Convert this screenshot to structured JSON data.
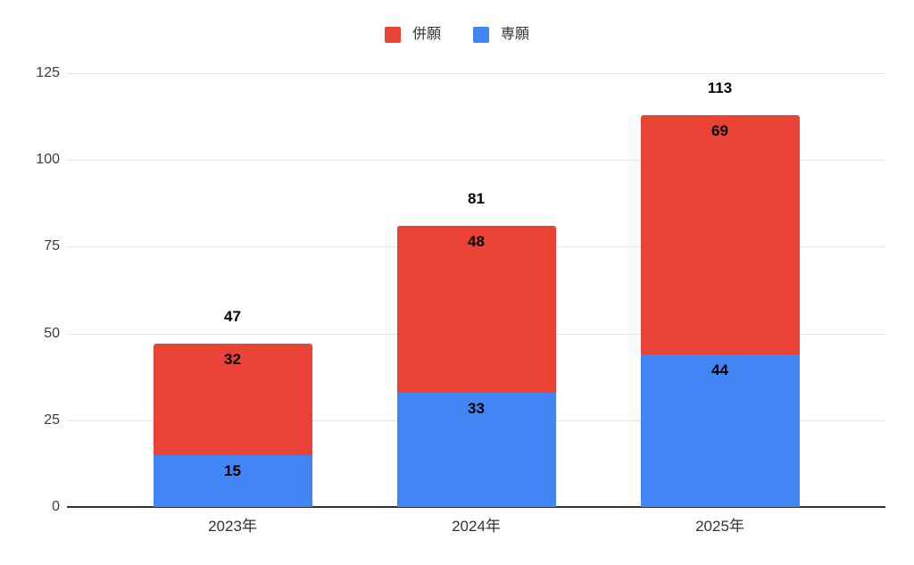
{
  "chart_data": {
    "type": "bar",
    "stacked": true,
    "title": "",
    "xlabel": "",
    "ylabel": "",
    "categories": [
      "2023年",
      "2024年",
      "2025年"
    ],
    "series": [
      {
        "name": "専願",
        "color": "#4285F4",
        "values": [
          15,
          33,
          44
        ]
      },
      {
        "name": "併願",
        "color": "#EA4335",
        "values": [
          32,
          48,
          69
        ]
      }
    ],
    "totals": [
      47,
      81,
      113
    ],
    "legend": [
      {
        "label": "併願",
        "color": "#EA4335"
      },
      {
        "label": "専願",
        "color": "#4285F4"
      }
    ],
    "legend_position": "top",
    "yticks": [
      0,
      25,
      50,
      75,
      100,
      125
    ],
    "ylim": [
      0,
      125
    ],
    "grid": true,
    "colors": {
      "background": "#ffffff",
      "gridline": "#e3e3e3",
      "axis": "#333333",
      "value_label": "#000000"
    }
  }
}
